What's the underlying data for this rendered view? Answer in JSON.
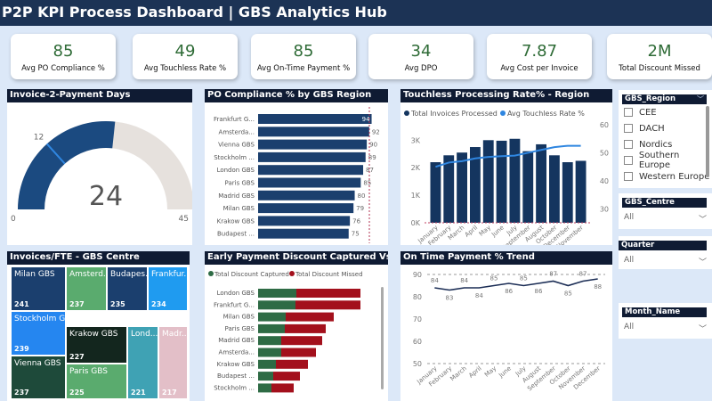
{
  "header": {
    "title": "P2P KPI Process Dashboard | GBS Analytics Hub"
  },
  "kpis": [
    {
      "value": "85",
      "label": "Avg PO Compliance %"
    },
    {
      "value": "49",
      "label": "Avg Touchless Rate %"
    },
    {
      "value": "85",
      "label": "Avg On-Time Payment %"
    },
    {
      "value": "34",
      "label": "Avg DPO"
    },
    {
      "value": "7.87",
      "label": "Avg Cost per Invoice"
    },
    {
      "value": "2M",
      "label": "Total Discount Missed"
    }
  ],
  "chart_data": [
    {
      "type": "gauge",
      "title": "Invoice-2-Payment Days",
      "value": 24,
      "min": 0,
      "max": 45,
      "target": 12,
      "value_label": "24",
      "min_label": "0",
      "max_label": "45",
      "target_label": "12",
      "colors": {
        "fill": "#1b4a80",
        "track": "#e6e1dd",
        "target": "#2f86e0"
      }
    },
    {
      "type": "bar",
      "orientation": "horizontal",
      "title": "PO Compliance % by GBS Region",
      "categories": [
        "Frankfurt G...",
        "Amsterda...",
        "Vienna GBS",
        "Stockholm ...",
        "London GBS",
        "Paris GBS",
        "Madrid GBS",
        "Milan GBS",
        "Krakow GBS",
        "Budapest ..."
      ],
      "values": [
        94,
        92,
        90,
        89,
        87,
        85,
        80,
        79,
        76,
        75
      ],
      "labels": [
        "94",
        "92",
        "90",
        "89",
        "87",
        "85",
        "80",
        "79",
        "76",
        "75"
      ],
      "color": "#1b3f6e"
    },
    {
      "type": "bar",
      "title": "Touchless Processing Rate% - Region",
      "categories": [
        "January",
        "February",
        "March",
        "April",
        "May",
        "June",
        "July",
        "September",
        "August",
        "October",
        "December",
        "November"
      ],
      "series": [
        {
          "name": "Total Invoices Processed",
          "type": "bar",
          "values": [
            2200,
            2450,
            2550,
            2750,
            3000,
            2980,
            3050,
            2600,
            2850,
            2450,
            2200,
            2250
          ],
          "color": "#14355f"
        },
        {
          "name": "Avg Touchless Rate %",
          "type": "line",
          "values": [
            45,
            46.5,
            47,
            48,
            48.5,
            48.8,
            49,
            50,
            51,
            52,
            52.5,
            52.5
          ],
          "color": "#2f86e0"
        }
      ],
      "yticks_left": [
        "0K",
        "1K",
        "2K",
        "3K"
      ],
      "yticks_right": [
        "30",
        "40",
        "50",
        "60"
      ],
      "ylim_left": [
        0,
        3560
      ],
      "ylim_right": [
        25,
        60
      ]
    },
    {
      "type": "treemap",
      "title": "Invoices/FTE - GBS Centre",
      "items": [
        {
          "name": "Milan GBS",
          "value": 241,
          "color": "#1b3f6e"
        },
        {
          "name": "Amsterd...",
          "value": 237,
          "color": "#5aab6e"
        },
        {
          "name": "Budapes...",
          "value": 235,
          "color": "#1b3f6e"
        },
        {
          "name": "Frankfur...",
          "value": 234,
          "color": "#1f9bf0"
        },
        {
          "name": "Stockholm G...",
          "value": 239,
          "color": "#2586f0"
        },
        {
          "name": "Krakow GBS",
          "value": 227,
          "color": "#13261e"
        },
        {
          "name": "Lond...",
          "value": 221,
          "color": "#3fa2b4"
        },
        {
          "name": "Madr...",
          "value": 217,
          "color": "#e3bfc8"
        },
        {
          "name": "Vienna GBS",
          "value": 237,
          "color": "#1e4a3a"
        },
        {
          "name": "Paris GBS",
          "value": 225,
          "color": "#5aab6e"
        }
      ]
    },
    {
      "type": "bar",
      "orientation": "horizontal",
      "stacked": true,
      "title": "Early Payment Discount Captured Vs Missed",
      "categories": [
        "London GBS",
        "Frankfurt G...",
        "Milan GBS",
        "Paris GBS",
        "Madrid GBS",
        "Amsterda...",
        "Krakow GBS",
        "Budapest ...",
        "Stockholm ..."
      ],
      "series": [
        {
          "name": "Total Discount Captured",
          "values": [
            43,
            42,
            31,
            30,
            26,
            26,
            20,
            17,
            15
          ],
          "color": "#2e6b45"
        },
        {
          "name": "Total Discount Missed",
          "values": [
            72,
            73,
            54,
            46,
            46,
            39,
            36,
            30,
            25
          ],
          "color": "#a3101c"
        }
      ]
    },
    {
      "type": "line",
      "title": "On Time Payment % Trend",
      "categories": [
        "January",
        "February",
        "March",
        "April",
        "May",
        "June",
        "July",
        "August",
        "September",
        "October",
        "November",
        "December"
      ],
      "values": [
        84,
        83,
        84,
        84,
        85,
        86,
        85,
        86,
        87,
        85,
        87,
        88
      ],
      "yticks": [
        "50",
        "60",
        "70",
        "80",
        "90"
      ],
      "ylim": [
        50,
        90
      ],
      "color": "#1b2d55"
    }
  ],
  "slicers": {
    "region": {
      "title": "GBS_Region",
      "options": [
        "CEE",
        "DACH",
        "Nordics",
        "Southern Europe",
        "Western Europe"
      ]
    },
    "centre": {
      "title": "GBS_Centre",
      "value": "All"
    },
    "quarter": {
      "title": "Quarter",
      "value": "All"
    },
    "month": {
      "title": "Month_Name",
      "value": "All"
    }
  }
}
